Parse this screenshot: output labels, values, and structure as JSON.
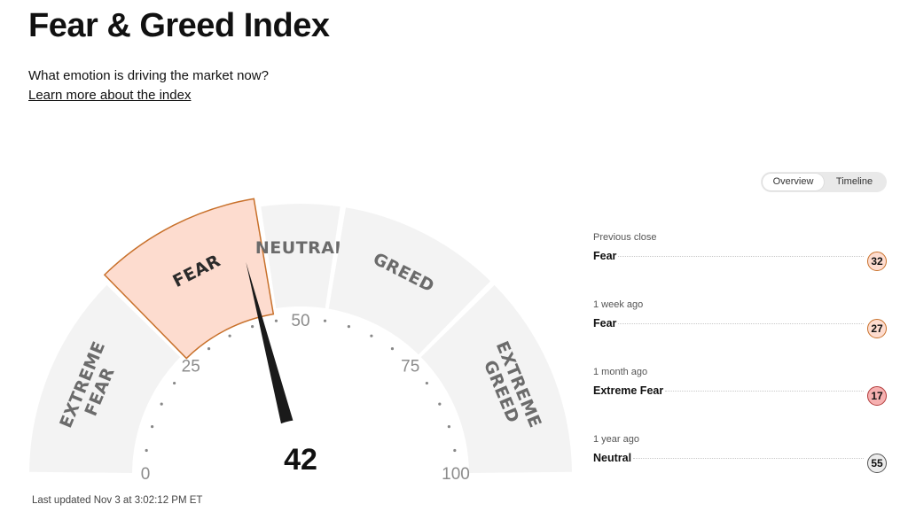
{
  "header": {
    "title": "Fear & Greed Index",
    "subtitle": "What emotion is driving the market now?",
    "learn_link": "Learn more about the index"
  },
  "gauge": {
    "value": 42,
    "value_text": "42",
    "active_segment": "FEAR",
    "segments": [
      {
        "label": "EXTREME FEAR",
        "from": 0,
        "to": 25,
        "line1": "EXTREME",
        "line2": "FEAR"
      },
      {
        "label": "FEAR",
        "from": 25,
        "to": 45,
        "line1": "FEAR",
        "line2": ""
      },
      {
        "label": "NEUTRAL",
        "from": 45,
        "to": 55,
        "line1": "NEUTRAL",
        "line2": ""
      },
      {
        "label": "GREED",
        "from": 55,
        "to": 75,
        "line1": "GREED",
        "line2": ""
      },
      {
        "label": "EXTREME GREED",
        "from": 75,
        "to": 100,
        "line1": "EXTREME",
        "line2": "GREED"
      }
    ],
    "ticks": [
      "0",
      "25",
      "50",
      "75",
      "100"
    ],
    "colors": {
      "segment": "#f3f3f3",
      "active_fill": "#fddccf",
      "active_stroke": "#c8702a",
      "needle": "#1a1a1a"
    }
  },
  "last_updated": "Last updated Nov 3 at 3:02:12 PM ET",
  "view_toggle": {
    "options": [
      "Overview",
      "Timeline"
    ],
    "selected": "Overview"
  },
  "history": [
    {
      "when": "Previous close",
      "label": "Fear",
      "value": "32",
      "color": "#fddccf",
      "border": "#c8702a"
    },
    {
      "when": "1 week ago",
      "label": "Fear",
      "value": "27",
      "color": "#fddccf",
      "border": "#c8702a"
    },
    {
      "when": "1 month ago",
      "label": "Extreme Fear",
      "value": "17",
      "color": "#f6b0b0",
      "border": "#b23b3b"
    },
    {
      "when": "1 year ago",
      "label": "Neutral",
      "value": "55",
      "color": "#ececec",
      "border": "#555555"
    }
  ]
}
